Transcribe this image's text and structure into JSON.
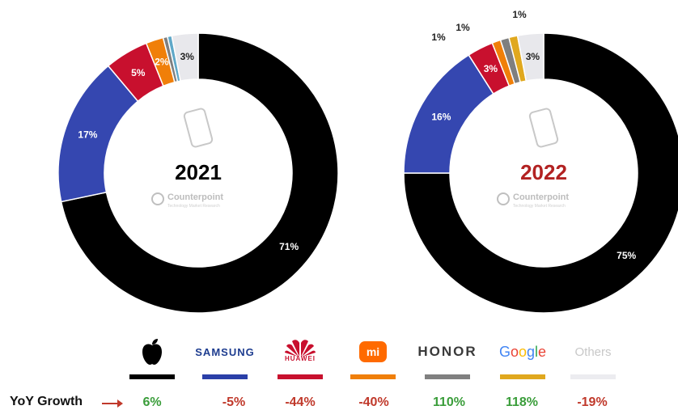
{
  "chart_data": [
    {
      "type": "pie",
      "title": "2021",
      "title_color": "#000000",
      "slices": [
        {
          "name": "Apple",
          "value": 71,
          "label": "71%",
          "color": "#000000"
        },
        {
          "name": "Samsung",
          "value": 17,
          "label": "17%",
          "color": "#3547b0"
        },
        {
          "name": "Huawei",
          "value": 5,
          "label": "5%",
          "color": "#c8102e"
        },
        {
          "name": "Xiaomi",
          "value": 2,
          "label": "2%",
          "color": "#f07f09"
        },
        {
          "name": "Honor",
          "value": 0.5,
          "label": "",
          "color": "#7f7f7f"
        },
        {
          "name": "Google",
          "value": 0.5,
          "label": "",
          "color": "#5fa8c8"
        },
        {
          "name": "Others",
          "value": 3,
          "label": "3%",
          "color": "#e8e8ec"
        }
      ]
    },
    {
      "type": "pie",
      "title": "2022",
      "title_color": "#b22222",
      "slices": [
        {
          "name": "Apple",
          "value": 75,
          "label": "75%",
          "color": "#000000"
        },
        {
          "name": "Samsung",
          "value": 16,
          "label": "16%",
          "color": "#3547b0"
        },
        {
          "name": "Huawei",
          "value": 3,
          "label": "3%",
          "color": "#c8102e"
        },
        {
          "name": "Xiaomi",
          "value": 1,
          "label": "1%",
          "color": "#f07f09"
        },
        {
          "name": "Honor",
          "value": 1,
          "label": "1%",
          "color": "#7f7f7f"
        },
        {
          "name": "Google",
          "value": 1,
          "label": "1%",
          "color": "#e0a81e"
        },
        {
          "name": "Others",
          "value": 3,
          "label": "3%",
          "color": "#e8e8ec"
        }
      ]
    }
  ],
  "watermark": {
    "brand": "Counterpoint",
    "tagline": "Technology Market Research"
  },
  "legend": {
    "yoy_label": "YoY Growth",
    "brands": [
      {
        "name": "Apple",
        "logo": "apple-icon",
        "color": "#000000",
        "growth": "6%",
        "growth_color": "#3a9d3a"
      },
      {
        "name": "SAMSUNG",
        "logo": "samsung-logo",
        "color": "#1d3c8f",
        "growth": "-5%",
        "growth_color": "#c0392b"
      },
      {
        "name": "HUAWEI",
        "logo": "huawei-logo",
        "color": "#c8102e",
        "growth": "-44%",
        "growth_color": "#c0392b"
      },
      {
        "name": "mi",
        "logo": "xiaomi-logo",
        "color": "#f07f09",
        "growth": "-40%",
        "growth_color": "#c0392b"
      },
      {
        "name": "HONOR",
        "logo": "honor-logo",
        "color": "#808080",
        "growth": "110%",
        "growth_color": "#3a9d3a"
      },
      {
        "name": "Google",
        "logo": "google-logo",
        "color": "#e0a81e",
        "growth": "118%",
        "growth_color": "#3a9d3a"
      },
      {
        "name": "Others",
        "logo": "others-text",
        "color": "#e8e8ec",
        "growth": "-19%",
        "growth_color": "#c0392b"
      }
    ]
  }
}
